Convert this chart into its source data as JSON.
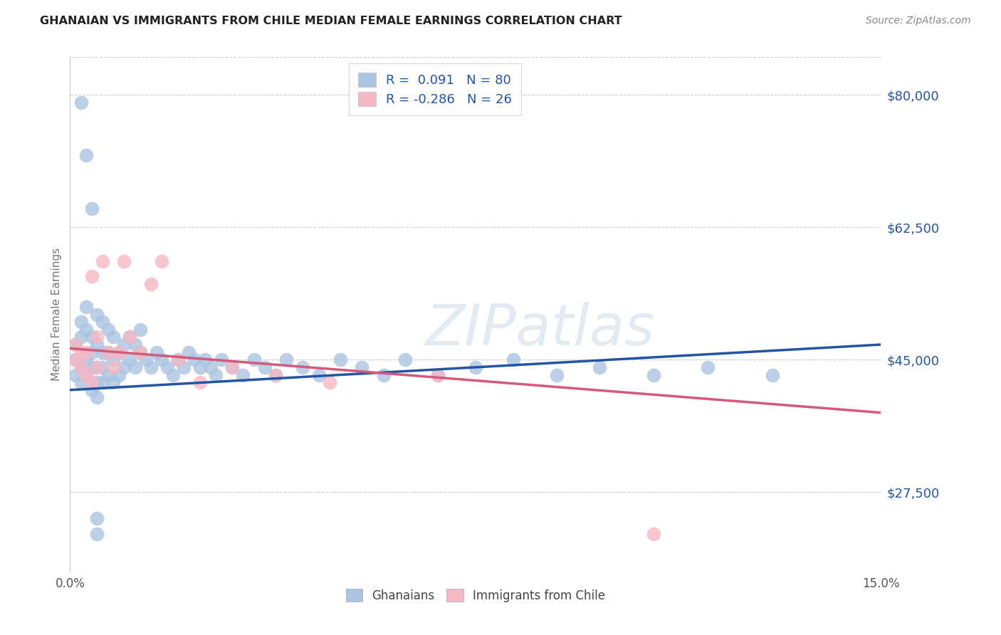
{
  "title": "GHANAIAN VS IMMIGRANTS FROM CHILE MEDIAN FEMALE EARNINGS CORRELATION CHART",
  "source": "Source: ZipAtlas.com",
  "ylabel": "Median Female Earnings",
  "xlim": [
    0.0,
    0.15
  ],
  "ylim": [
    17000,
    85000
  ],
  "yticks": [
    27500,
    45000,
    62500,
    80000
  ],
  "ytick_labels": [
    "$27,500",
    "$45,000",
    "$62,500",
    "$80,000"
  ],
  "xtick_positions": [
    0.0,
    0.15
  ],
  "xtick_labels": [
    "0.0%",
    "15.0%"
  ],
  "background_color": "#ffffff",
  "grid_color": "#cccccc",
  "watermark": "ZIPatlas",
  "ghanaian_color": "#aac4e2",
  "ghanaian_edge_color": "#aac4e2",
  "ghanaian_line_color": "#2255a4",
  "chile_color": "#f5b8c4",
  "chile_edge_color": "#f5b8c4",
  "chile_line_color": "#d45a7a",
  "legend_R_blue": "0.091",
  "legend_N_blue": "80",
  "legend_R_pink": "-0.286",
  "legend_N_pink": "26",
  "legend_text_color": "#2255a4",
  "ytick_color": "#2255a4",
  "title_color": "#222222",
  "source_color": "#888888",
  "ylabel_color": "#777777",
  "blue_line_x": [
    0.0,
    0.15
  ],
  "blue_line_y": [
    41000,
    47000
  ],
  "pink_line_x": [
    0.0,
    0.15
  ],
  "pink_line_y": [
    46500,
    38000
  ],
  "ghanaian_x": [
    0.001,
    0.001,
    0.001,
    0.002,
    0.002,
    0.002,
    0.002,
    0.003,
    0.003,
    0.003,
    0.003,
    0.004,
    0.004,
    0.004,
    0.004,
    0.005,
    0.005,
    0.005,
    0.005,
    0.005,
    0.006,
    0.006,
    0.006,
    0.006,
    0.007,
    0.007,
    0.007,
    0.008,
    0.008,
    0.008,
    0.009,
    0.009,
    0.01,
    0.01,
    0.011,
    0.011,
    0.012,
    0.012,
    0.013,
    0.013,
    0.014,
    0.015,
    0.016,
    0.017,
    0.018,
    0.019,
    0.02,
    0.021,
    0.022,
    0.023,
    0.024,
    0.025,
    0.026,
    0.027,
    0.028,
    0.03,
    0.032,
    0.034,
    0.036,
    0.038,
    0.04,
    0.043,
    0.046,
    0.05,
    0.054,
    0.058,
    0.062,
    0.068,
    0.075,
    0.082,
    0.09,
    0.098,
    0.108,
    0.118,
    0.13,
    0.002,
    0.003,
    0.005,
    0.005,
    0.004
  ],
  "ghanaian_y": [
    43000,
    45000,
    47000,
    42000,
    44000,
    48000,
    50000,
    43000,
    45000,
    49000,
    52000,
    41000,
    44000,
    46000,
    48000,
    40000,
    42000,
    44000,
    47000,
    51000,
    42000,
    44000,
    46000,
    50000,
    43000,
    46000,
    49000,
    42000,
    45000,
    48000,
    43000,
    46000,
    44000,
    47000,
    45000,
    48000,
    44000,
    47000,
    46000,
    49000,
    45000,
    44000,
    46000,
    45000,
    44000,
    43000,
    45000,
    44000,
    46000,
    45000,
    44000,
    45000,
    44000,
    43000,
    45000,
    44000,
    43000,
    45000,
    44000,
    43000,
    45000,
    44000,
    43000,
    45000,
    44000,
    43000,
    45000,
    43000,
    44000,
    45000,
    43000,
    44000,
    43000,
    44000,
    43000,
    79000,
    72000,
    24000,
    22000,
    65000
  ],
  "chile_x": [
    0.001,
    0.001,
    0.002,
    0.002,
    0.003,
    0.003,
    0.004,
    0.004,
    0.005,
    0.005,
    0.006,
    0.007,
    0.008,
    0.009,
    0.01,
    0.011,
    0.013,
    0.015,
    0.017,
    0.02,
    0.024,
    0.03,
    0.038,
    0.048,
    0.068,
    0.108
  ],
  "chile_y": [
    45000,
    47000,
    44000,
    46000,
    43000,
    46000,
    42000,
    56000,
    44000,
    48000,
    58000,
    46000,
    44000,
    46000,
    58000,
    48000,
    46000,
    55000,
    58000,
    45000,
    42000,
    44000,
    43000,
    42000,
    43000,
    22000
  ]
}
